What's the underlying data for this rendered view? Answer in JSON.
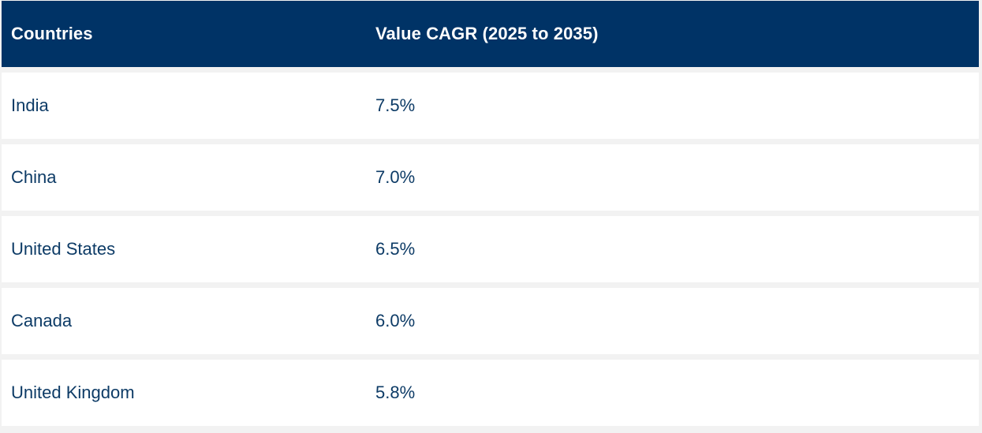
{
  "table": {
    "headers": {
      "country": "Countries",
      "value": "Value CAGR (2025 to 2035)"
    },
    "rows": [
      {
        "country": "India",
        "value": "7.5%"
      },
      {
        "country": "China",
        "value": "7.0%"
      },
      {
        "country": "United States",
        "value": "6.5%"
      },
      {
        "country": "Canada",
        "value": "6.0%"
      },
      {
        "country": "United Kingdom",
        "value": "5.8%"
      }
    ]
  },
  "colors": {
    "header_bg": "#003366",
    "header_text": "#ffffff",
    "row_bg": "#ffffff",
    "row_text": "#0d3b66",
    "gap": "#f2f2f2"
  }
}
